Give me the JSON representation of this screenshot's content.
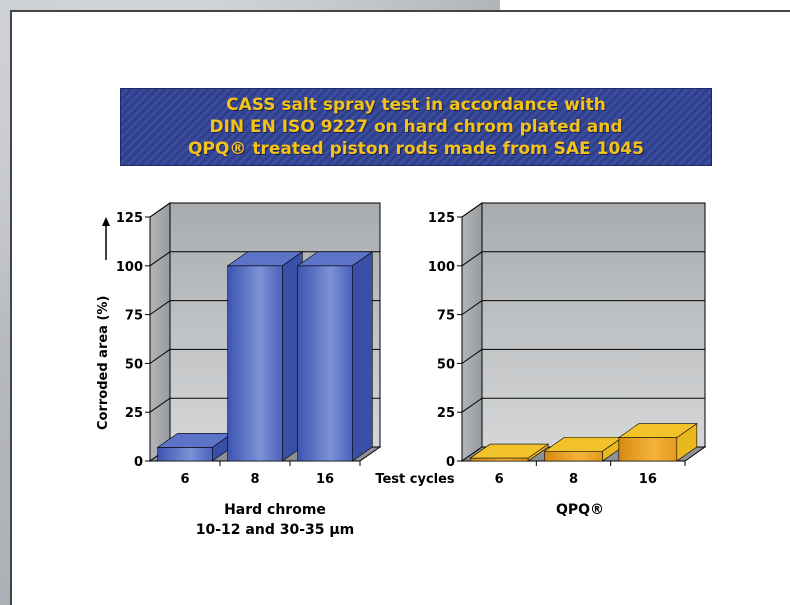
{
  "title_lines": [
    "CASS salt spray test in accordance with",
    "DIN EN ISO 9227 on hard chrom plated and",
    "QPQ® treated piston rods made from SAE 1045"
  ],
  "colors": {
    "banner_bg": "#34479a",
    "title_text": "#f3c319",
    "blue_bar": "#4a62bc",
    "orange_bar": "#e9a21e"
  },
  "chart_data": [
    {
      "type": "bar",
      "title": "",
      "ylabel": "Corroded area (%)",
      "xlabel": "Hard chrome\n10-12 and 30-35 µm",
      "categories": [
        "6",
        "8",
        "16"
      ],
      "values": [
        7,
        100,
        100
      ],
      "yticks": [
        0,
        25,
        50,
        75,
        100,
        125
      ],
      "ylim": [
        0,
        125
      ],
      "grid": true,
      "color": "#4a62bc"
    },
    {
      "type": "bar",
      "title": "",
      "ylabel": "",
      "xlabel": "QPQ®",
      "categories": [
        "6",
        "8",
        "16"
      ],
      "values": [
        1.5,
        5,
        12
      ],
      "yticks": [
        0,
        25,
        50,
        75,
        100,
        125
      ],
      "ylim": [
        0,
        125
      ],
      "grid": true,
      "color": "#e9a21e"
    }
  ],
  "x_axis_caption": "Test cycles",
  "left_sub_label_1": "Hard chrome",
  "left_sub_label_2": "10-12 and 30-35 µm",
  "right_sub_label": "QPQ®"
}
